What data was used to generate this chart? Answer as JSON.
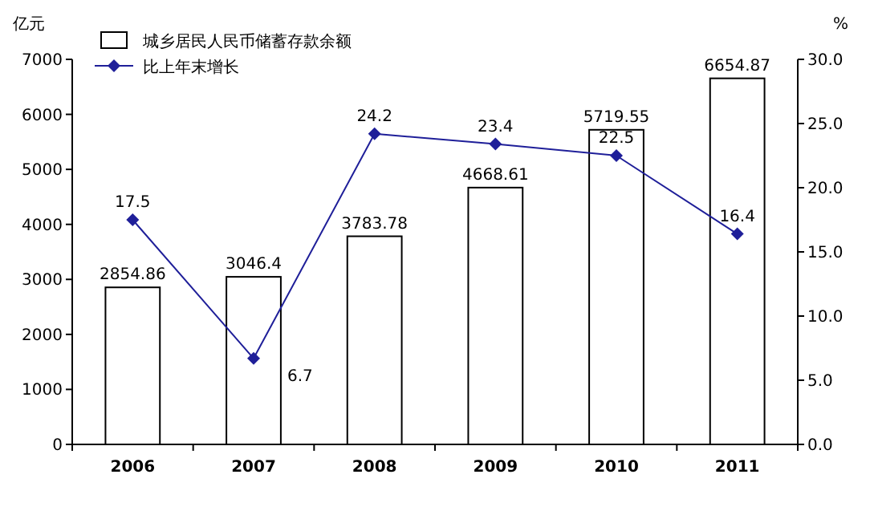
{
  "chart_data": {
    "type": "bar",
    "categories": [
      "2006",
      "2007",
      "2008",
      "2009",
      "2010",
      "2011"
    ],
    "ylabel": "亿元",
    "y2label": "%",
    "ylim": [
      0,
      7000
    ],
    "yticks": [
      0,
      1000,
      2000,
      3000,
      4000,
      5000,
      6000,
      7000
    ],
    "y2lim": [
      0,
      30
    ],
    "y2ticks": [
      {
        "value": 0,
        "label": "0.0"
      },
      {
        "value": 5,
        "label": "5.0"
      },
      {
        "value": 10,
        "label": "10.0"
      },
      {
        "value": 15,
        "label": "15.0"
      },
      {
        "value": 20,
        "label": "20.0"
      },
      {
        "value": 25,
        "label": "25.0"
      },
      {
        "value": 30,
        "label": "30.0"
      }
    ],
    "series": [
      {
        "name": "城乡居民人民币储蓄存款余额",
        "color": "#ffffff",
        "values": [
          2854.86,
          3046.4,
          3783.78,
          4668.61,
          5719.55,
          6654.87
        ]
      },
      {
        "name": "比上年末增长",
        "type": "line",
        "axis": "y2",
        "color": "#1f1f99",
        "marker": "diamond",
        "values": [
          17.5,
          6.7,
          24.2,
          23.4,
          22.5,
          16.4
        ]
      }
    ],
    "data_labels": true,
    "legend": "top left",
    "grid": false
  }
}
